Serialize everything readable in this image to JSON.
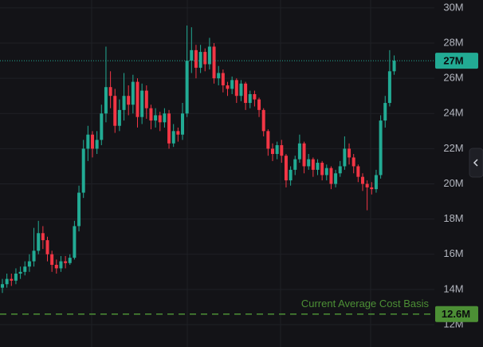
{
  "chart_data": {
    "type": "candlestick",
    "open": [
      14.1,
      14.3,
      14.6,
      14.5,
      14.9,
      15.0,
      15.3,
      15.6,
      16.2,
      17.2,
      16.8,
      16.0,
      15.4,
      15.2,
      15.6,
      15.5,
      15.8,
      17.6,
      19.5,
      22.0,
      22.8,
      22.0,
      22.5,
      24.0,
      25.5,
      25.0,
      23.3,
      24.2,
      25.0,
      24.5,
      25.8,
      23.8,
      25.3,
      24.3,
      23.6,
      23.9,
      23.5,
      24.0,
      22.3,
      23.0,
      22.8,
      24.0,
      27.0,
      27.6,
      26.6,
      27.5,
      26.8,
      27.8,
      26.0,
      26.3,
      25.6,
      25.4,
      25.9,
      25.0,
      25.7,
      24.6,
      25.1,
      24.8,
      24.2,
      23.0,
      22.0,
      21.7,
      22.2,
      21.6,
      20.2,
      20.8,
      21.4,
      22.3,
      21.0,
      21.4,
      20.8,
      21.2,
      20.5,
      20.9,
      20.0,
      20.6,
      21.0,
      22.0,
      21.5,
      21.0,
      20.4,
      20.0,
      19.8,
      19.7,
      20.5,
      23.6,
      24.6,
      26.4
    ],
    "high": [
      14.6,
      14.9,
      14.9,
      15.2,
      15.3,
      15.6,
      16.0,
      17.5,
      17.9,
      17.6,
      17.0,
      16.2,
      15.7,
      15.9,
      15.9,
      16.0,
      17.9,
      19.9,
      22.5,
      23.3,
      23.0,
      23.0,
      24.5,
      27.8,
      26.4,
      25.4,
      24.8,
      26.3,
      25.6,
      26.2,
      26.0,
      25.7,
      25.6,
      24.5,
      24.3,
      24.1,
      24.3,
      24.2,
      23.4,
      23.2,
      24.6,
      29.0,
      28.9,
      27.9,
      27.9,
      27.7,
      28.3,
      28.0,
      26.7,
      26.5,
      25.8,
      26.1,
      26.0,
      25.9,
      25.8,
      25.3,
      25.3,
      24.9,
      24.3,
      23.1,
      22.3,
      22.4,
      22.5,
      21.7,
      21.0,
      21.6,
      22.8,
      22.4,
      21.7,
      21.5,
      21.4,
      21.3,
      21.1,
      21.0,
      20.8,
      21.3,
      22.7,
      22.3,
      21.7,
      21.1,
      20.6,
      20.2,
      20.1,
      20.8,
      23.9,
      25.0,
      27.6,
      27.3
    ],
    "low": [
      13.8,
      14.1,
      14.2,
      14.3,
      14.6,
      14.8,
      15.0,
      15.3,
      16.0,
      16.3,
      15.6,
      15.0,
      14.9,
      15.0,
      15.2,
      15.4,
      15.7,
      17.3,
      19.2,
      21.3,
      21.5,
      21.7,
      22.2,
      23.5,
      24.3,
      22.9,
      23.0,
      23.6,
      23.9,
      24.0,
      23.2,
      23.4,
      23.7,
      23.1,
      23.2,
      23.0,
      23.2,
      22.0,
      22.1,
      22.4,
      22.5,
      23.8,
      26.3,
      26.0,
      26.3,
      26.4,
      26.5,
      25.7,
      25.6,
      25.2,
      25.0,
      25.1,
      24.6,
      24.7,
      24.2,
      24.3,
      24.4,
      23.8,
      22.7,
      21.6,
      21.3,
      21.4,
      21.2,
      19.8,
      19.9,
      20.5,
      21.2,
      20.6,
      20.8,
      20.4,
      20.5,
      20.2,
      20.2,
      19.7,
      19.8,
      20.4,
      20.8,
      21.1,
      20.6,
      20.1,
      19.6,
      18.5,
      19.4,
      19.5,
      20.3,
      23.2,
      24.4,
      26.2
    ],
    "close": [
      14.3,
      14.6,
      14.5,
      14.9,
      15.0,
      15.3,
      15.6,
      16.2,
      17.2,
      16.8,
      16.0,
      15.4,
      15.2,
      15.6,
      15.5,
      15.8,
      17.6,
      19.5,
      22.0,
      22.8,
      22.0,
      22.5,
      24.0,
      25.5,
      25.0,
      23.3,
      24.2,
      25.0,
      24.5,
      25.8,
      23.8,
      25.3,
      24.3,
      23.6,
      23.9,
      23.5,
      24.0,
      22.3,
      23.0,
      22.8,
      24.0,
      27.0,
      27.6,
      26.6,
      27.5,
      26.8,
      27.8,
      26.0,
      26.3,
      25.6,
      25.4,
      25.9,
      25.0,
      25.7,
      24.6,
      25.1,
      24.8,
      24.2,
      23.0,
      22.0,
      21.7,
      22.2,
      21.6,
      20.2,
      20.8,
      21.4,
      22.3,
      21.0,
      21.4,
      20.8,
      21.2,
      20.5,
      20.9,
      20.0,
      20.6,
      21.0,
      22.0,
      21.5,
      21.0,
      20.4,
      20.0,
      19.8,
      19.7,
      20.5,
      23.6,
      24.6,
      26.4,
      27.0
    ],
    "up_color": "#22ab94",
    "down_color": "#f23645",
    "ylim": [
      10.73,
      30.45
    ],
    "yticks": [
      {
        "value": 12,
        "label": "12M"
      },
      {
        "value": 14,
        "label": "14M"
      },
      {
        "value": 16,
        "label": "16M"
      },
      {
        "value": 18,
        "label": "18M"
      },
      {
        "value": 20,
        "label": "20M"
      },
      {
        "value": 22,
        "label": "22M"
      },
      {
        "value": 24,
        "label": "24M"
      },
      {
        "value": 26,
        "label": "26M"
      },
      {
        "value": 28,
        "label": "28M"
      },
      {
        "value": 30,
        "label": "30M"
      }
    ],
    "grid": true,
    "price_line": {
      "value": 27,
      "label": "27M",
      "color": "#22ab94"
    },
    "cost_basis": {
      "value": 12.6,
      "label": "12.6M",
      "text": "Current Average Cost Basis",
      "color": "#4c8f35"
    }
  }
}
